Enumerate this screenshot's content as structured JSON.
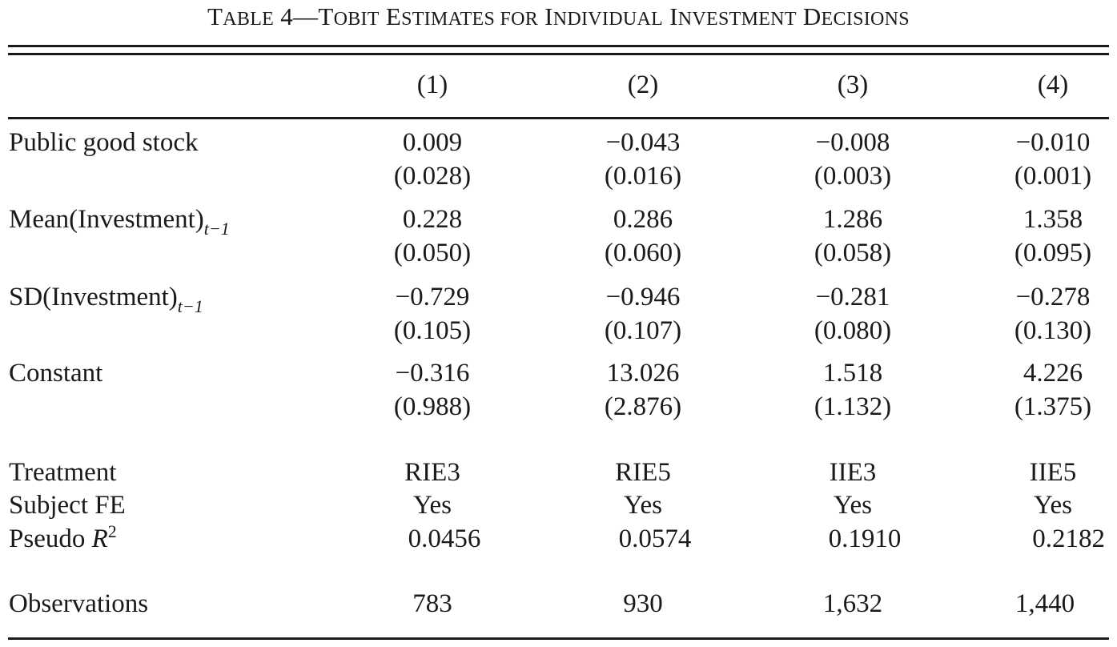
{
  "table": {
    "title": {
      "prefix_big": "T",
      "prefix_rest": "ABLE",
      "number": " 4—",
      "w1_big": "T",
      "w1_rest": "OBIT",
      "w2_big": " E",
      "w2_rest": "STIMATES FOR",
      "w3_big": " I",
      "w3_rest": "NDIVIDUAL",
      "w4_big": " I",
      "w4_rest": "NVESTMENT",
      "w5_big": " D",
      "w5_rest": "ECISIONS"
    },
    "columns": [
      "(1)",
      "(2)",
      "(3)",
      "(4)"
    ],
    "rows": {
      "public_good": {
        "label": "Public good stock",
        "coef": [
          "0.009",
          "−0.043",
          "−0.008",
          "−0.010"
        ],
        "se": [
          "(0.028)",
          "(0.016)",
          "(0.003)",
          "(0.001)"
        ]
      },
      "mean_inv": {
        "label": "Mean(Investment)",
        "subscript": "t−1",
        "coef": [
          "0.228",
          "0.286",
          "1.286",
          "1.358"
        ],
        "se": [
          "(0.050)",
          "(0.060)",
          "(0.058)",
          "(0.095)"
        ]
      },
      "sd_inv": {
        "label": "SD(Investment)",
        "subscript": "t−1",
        "coef": [
          "−0.729",
          "−0.946",
          "−0.281",
          "−0.278"
        ],
        "se": [
          "(0.105)",
          "(0.107)",
          "(0.080)",
          "(0.130)"
        ]
      },
      "constant": {
        "label": "Constant",
        "coef": [
          "−0.316",
          "13.026",
          "1.518",
          "4.226"
        ],
        "se": [
          "(0.988)",
          "(2.876)",
          "(1.132)",
          "(1.375)"
        ]
      },
      "treatment": {
        "label": "Treatment",
        "values": [
          "RIE3",
          "RIE5",
          "IIE3",
          "IIE5"
        ]
      },
      "subject_fe": {
        "label": "Subject FE",
        "values": [
          "Yes",
          "Yes",
          "Yes",
          "Yes"
        ]
      },
      "pseudo_r2": {
        "label": "Pseudo ",
        "label_italic": "R",
        "superscript": "2",
        "values": [
          "0.0456",
          "0.0574",
          "0.1910",
          "0.2182"
        ]
      },
      "observations": {
        "label": "Observations",
        "values": [
          "783",
          "930",
          "1,632",
          "1,440"
        ]
      }
    }
  }
}
